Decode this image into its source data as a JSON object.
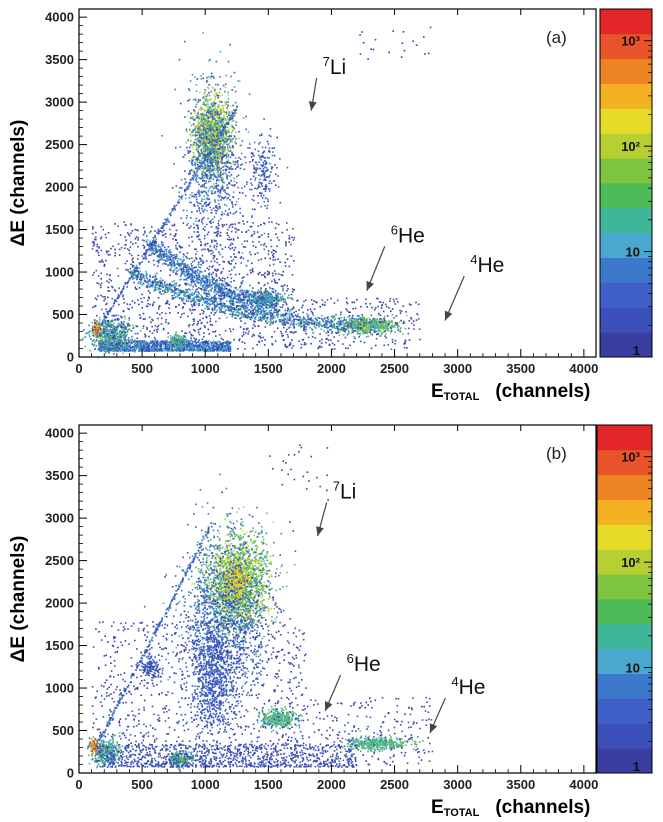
{
  "chart_data": [
    {
      "type": "heatmap",
      "panel_label": "(a)",
      "ylabel": "ΔE  (channels)",
      "xlabel_main": "E",
      "xlabel_sub": "TOTAL",
      "xlabel_units": "(channels)",
      "xlim": [
        0,
        4096
      ],
      "ylim": [
        0,
        4096
      ],
      "xticks": [
        "0",
        "500",
        "1000",
        "1500",
        "2000",
        "2500",
        "3000",
        "3500",
        "4000"
      ],
      "yticks": [
        "0",
        "500",
        "1000",
        "1500",
        "2000",
        "2500",
        "3000",
        "3500",
        "4000"
      ],
      "colorbar": {
        "scale": "log",
        "range": [
          1,
          2000
        ],
        "tick_labels": [
          "1",
          "10",
          "10²",
          "10³"
        ]
      },
      "annotations": [
        {
          "mass": "7",
          "label": "Li",
          "text_x": 1930,
          "text_y": 3330,
          "arrow_to": [
            1840,
            2900
          ]
        },
        {
          "mass": "6",
          "label": "He",
          "text_x": 2470,
          "text_y": 1350,
          "arrow_to": [
            2280,
            780
          ]
        },
        {
          "mass": "4",
          "label": "He",
          "text_x": 3100,
          "text_y": 1000,
          "arrow_to": [
            2900,
            430
          ]
        }
      ],
      "regions": [
        {
          "name": "7Li",
          "e_total": 1050,
          "delta_e": 2600,
          "counts_peak": 400
        },
        {
          "name": "6He",
          "e_total": 1400,
          "delta_e": 900,
          "counts_peak": 30
        },
        {
          "name": "4He",
          "e_total": 2300,
          "delta_e": 380,
          "counts_peak": 60
        }
      ]
    },
    {
      "type": "heatmap",
      "panel_label": "(b)",
      "ylabel": "ΔE  (channels)",
      "xlabel_main": "E",
      "xlabel_sub": "TOTAL",
      "xlabel_units": "(channels)",
      "xlim": [
        0,
        4096
      ],
      "ylim": [
        0,
        4096
      ],
      "xticks": [
        "0",
        "500",
        "1000",
        "1500",
        "2000",
        "2500",
        "3000",
        "3500",
        "4000"
      ],
      "yticks": [
        "0",
        "500",
        "1000",
        "1500",
        "2000",
        "2500",
        "3000",
        "3500",
        "4000"
      ],
      "colorbar": {
        "scale": "log",
        "range": [
          1,
          2000
        ],
        "tick_labels": [
          "1",
          "10",
          "10²",
          "10³"
        ]
      },
      "annotations": [
        {
          "mass": "7",
          "label": "Li",
          "text_x": 2010,
          "text_y": 3230,
          "arrow_to": [
            1890,
            2790
          ]
        },
        {
          "mass": "6",
          "label": "He",
          "text_x": 2120,
          "text_y": 1200,
          "arrow_to": [
            1950,
            730
          ]
        },
        {
          "mass": "4",
          "label": "He",
          "text_x": 2950,
          "text_y": 930,
          "arrow_to": [
            2780,
            470
          ]
        }
      ],
      "regions": [
        {
          "name": "7Li",
          "e_total": 1250,
          "delta_e": 2250,
          "counts_peak": 900
        },
        {
          "name": "6He",
          "e_total": 1580,
          "delta_e": 650,
          "counts_peak": 40
        },
        {
          "name": "4He",
          "e_total": 2350,
          "delta_e": 350,
          "counts_peak": 40
        }
      ]
    }
  ],
  "colors": {
    "scale": [
      "#3a3ea0",
      "#3d4fb8",
      "#3f60c6",
      "#3c78cc",
      "#4aa7cf",
      "#3fb69a",
      "#4cbb58",
      "#7ec43e",
      "#b8cf33",
      "#e6dc28",
      "#f2b022",
      "#ee8324",
      "#e9542a",
      "#e3262a"
    ],
    "frame": "#000000",
    "arrow": "#444444"
  }
}
